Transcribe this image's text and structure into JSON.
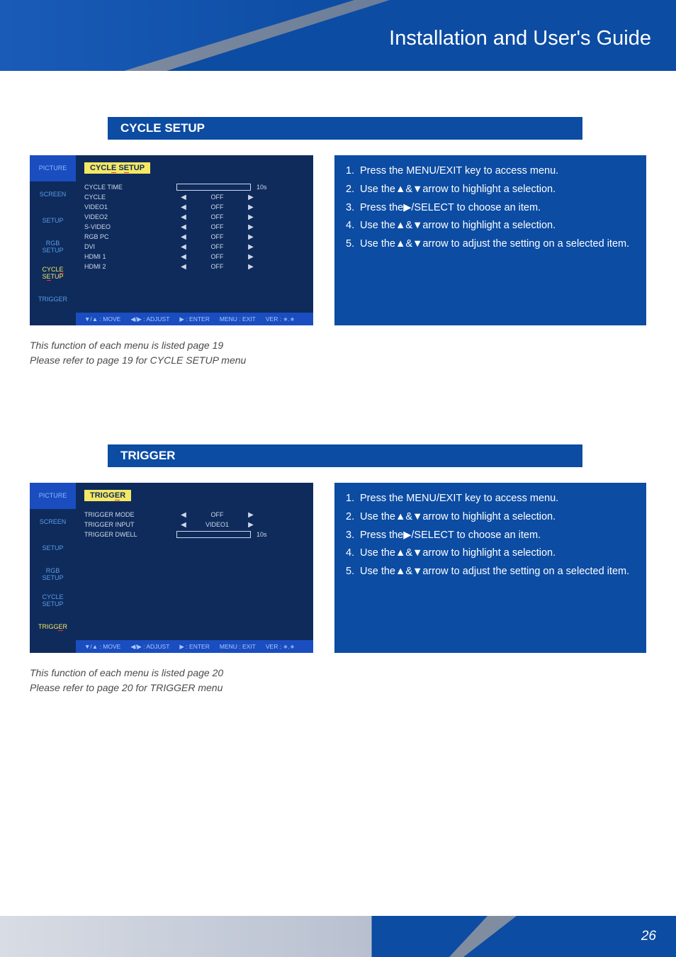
{
  "header": {
    "title": "Installation and User's Guide"
  },
  "section1": {
    "title": "CYCLE SETUP",
    "menu": {
      "tabs": [
        "PICTURE",
        "SCREEN",
        "SETUP",
        "RGB\nSETUP",
        "CYCLE\nSETUP",
        "TRIGGER"
      ],
      "activeIndex": 4,
      "heading_a": "CYCL",
      "heading_uchar": "E",
      "heading_b": " S",
      "heading_uchar2": "E",
      "heading_c": "TUP",
      "sliderRow": {
        "label": "CYCLE TIME",
        "value": "10s"
      },
      "rows": [
        {
          "label": "CYCLE",
          "value": "OFF"
        },
        {
          "label": "VIDEO1",
          "value": "OFF"
        },
        {
          "label": "VIDEO2",
          "value": "OFF"
        },
        {
          "label": "S-VIDEO",
          "value": "OFF"
        },
        {
          "label": "RGB PC",
          "value": "OFF"
        },
        {
          "label": "DVI",
          "value": "OFF"
        },
        {
          "label": "HDMI 1",
          "value": "OFF"
        },
        {
          "label": "HDMI 2",
          "value": "OFF"
        }
      ],
      "footer": [
        "▼/▲ : MOVE",
        "◀/▶ : ADJUST",
        "▶ : ENTER",
        "MENU : EXIT",
        "VER : ∗.∗"
      ]
    },
    "caption1": "This function of each menu is listed page 19",
    "caption2": "Please refer to page 19 for CYCLE SETUP menu"
  },
  "section2": {
    "title": "TRIGGER",
    "menu": {
      "tabs": [
        "PICTURE",
        "SCREEN",
        "SETUP",
        "RGB\nSETUP",
        "CYCLE\nSETUP",
        "TRIGGER"
      ],
      "activeIndex": 5,
      "heading_a": "TRIGG",
      "heading_uchar": "E",
      "heading_b": "R",
      "rows": [
        {
          "label": "TRIGGER MODE",
          "value": "OFF"
        },
        {
          "label": "TRIGGER INPUT",
          "value": "VIDEO1"
        }
      ],
      "sliderRow": {
        "label": "TRIGGER DWELL",
        "value": "10s"
      },
      "footer": [
        "▼/▲ : MOVE",
        "◀/▶ : ADJUST",
        "▶ : ENTER",
        "MENU : EXIT",
        "VER : ∗.∗"
      ]
    },
    "caption1": "This function of each menu is listed page 20",
    "caption2": "Please refer to page 20 for TRIGGER menu"
  },
  "instructions": {
    "items": [
      {
        "n": "1.",
        "t": "Press the MENU/EXIT key to access menu."
      },
      {
        "n": "2.",
        "t": "Use the▲&▼arrow to highlight a selection."
      },
      {
        "n": "3.",
        "t": "Press the▶/SELECT to choose an item."
      },
      {
        "n": "4.",
        "t": "Use the▲&▼arrow to highlight a selection."
      },
      {
        "n": "5.",
        "t": "Use the▲&▼arrow to adjust the setting on a selected item."
      }
    ]
  },
  "pageNumber": "26"
}
